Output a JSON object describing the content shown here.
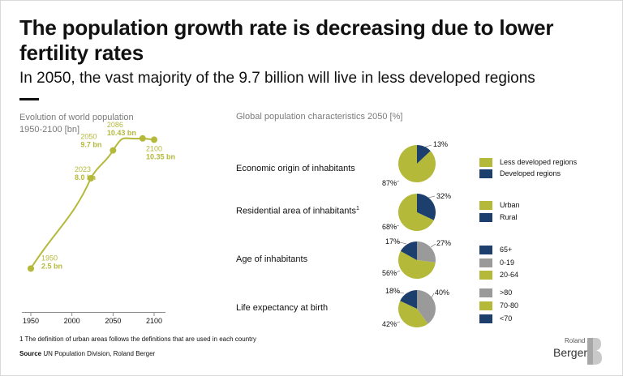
{
  "header": {
    "title": "The population growth rate is decreasing due to lower fertility rates",
    "subtitle": "In 2050, the vast majority of the 9.7 billion will live in less developed regions"
  },
  "colors": {
    "olive": "#b4b93a",
    "navy": "#1d3f6e",
    "gray": "#9a9a9a",
    "axis": "#8c8c8c"
  },
  "chart_data": [
    {
      "type": "line",
      "title": "Evolution of world population 1950-2100 [bn]",
      "title_lines": [
        "Evolution of world population",
        "1950-2100 [bn]"
      ],
      "x": [
        1950,
        2023,
        2050,
        2086,
        2100
      ],
      "y": [
        2.5,
        8.0,
        9.7,
        10.43,
        10.35
      ],
      "highlighted_points": [
        {
          "year": "1950",
          "value": "2.5 bn"
        },
        {
          "year": "2023",
          "value": "8.0 bn"
        },
        {
          "year": "2050",
          "value": "9.7 bn"
        },
        {
          "year": "2086",
          "value": "10.43 bn"
        },
        {
          "year": "2100",
          "value": "10.35 bn"
        }
      ],
      "x_ticks": [
        "1950",
        "2000",
        "2050",
        "2100"
      ],
      "xlim": [
        1940,
        2110
      ],
      "ylim": [
        0,
        12
      ]
    },
    {
      "type": "pie",
      "title": "Global population characteristics 2050 [%]",
      "rows": [
        {
          "label": "Economic origin of inhabitants",
          "superscript": "",
          "slices": [
            {
              "name": "Developed regions",
              "value": 13,
              "label": "13%",
              "color": "navy"
            },
            {
              "name": "Less developed regions",
              "value": 87,
              "label": "87%",
              "color": "olive"
            }
          ],
          "legend": [
            {
              "name": "Less developed regions",
              "color": "olive"
            },
            {
              "name": "Developed regions",
              "color": "navy"
            }
          ]
        },
        {
          "label": "Residential area of inhabitants",
          "superscript": "1",
          "slices": [
            {
              "name": "Rural",
              "value": 32,
              "label": "32%",
              "color": "navy"
            },
            {
              "name": "Urban",
              "value": 68,
              "label": "68%",
              "color": "olive"
            }
          ],
          "legend": [
            {
              "name": "Urban",
              "color": "olive"
            },
            {
              "name": "Rural",
              "color": "navy"
            }
          ]
        },
        {
          "label": "Age of inhabitants",
          "superscript": "",
          "slices": [
            {
              "name": "0-19",
              "value": 27,
              "label": "27%",
              "color": "gray"
            },
            {
              "name": "20-64",
              "value": 56,
              "label": "56%",
              "color": "olive"
            },
            {
              "name": "65+",
              "value": 17,
              "label": "17%",
              "color": "navy"
            }
          ],
          "legend": [
            {
              "name": "65+",
              "color": "navy"
            },
            {
              "name": "0-19",
              "color": "gray"
            },
            {
              "name": "20-64",
              "color": "olive"
            }
          ]
        },
        {
          "label": "Life expectancy at birth",
          "superscript": "",
          "slices": [
            {
              "name": ">80",
              "value": 40,
              "label": "40%",
              "color": "gray"
            },
            {
              "name": "70-80",
              "value": 42,
              "label": "42%",
              "color": "olive"
            },
            {
              "name": "<70",
              "value": 18,
              "label": "18%",
              "color": "navy"
            }
          ],
          "legend": [
            {
              "name": ">80",
              "color": "gray"
            },
            {
              "name": "70-80",
              "color": "olive"
            },
            {
              "name": "<70",
              "color": "navy"
            }
          ]
        }
      ]
    }
  ],
  "footnote": "1 The definition of urban areas follows the definitions that are used in each country",
  "source": {
    "label": "Source",
    "text": "UN Population Division, Roland Berger"
  },
  "logo": {
    "small": "Roland",
    "big": "Berger"
  }
}
